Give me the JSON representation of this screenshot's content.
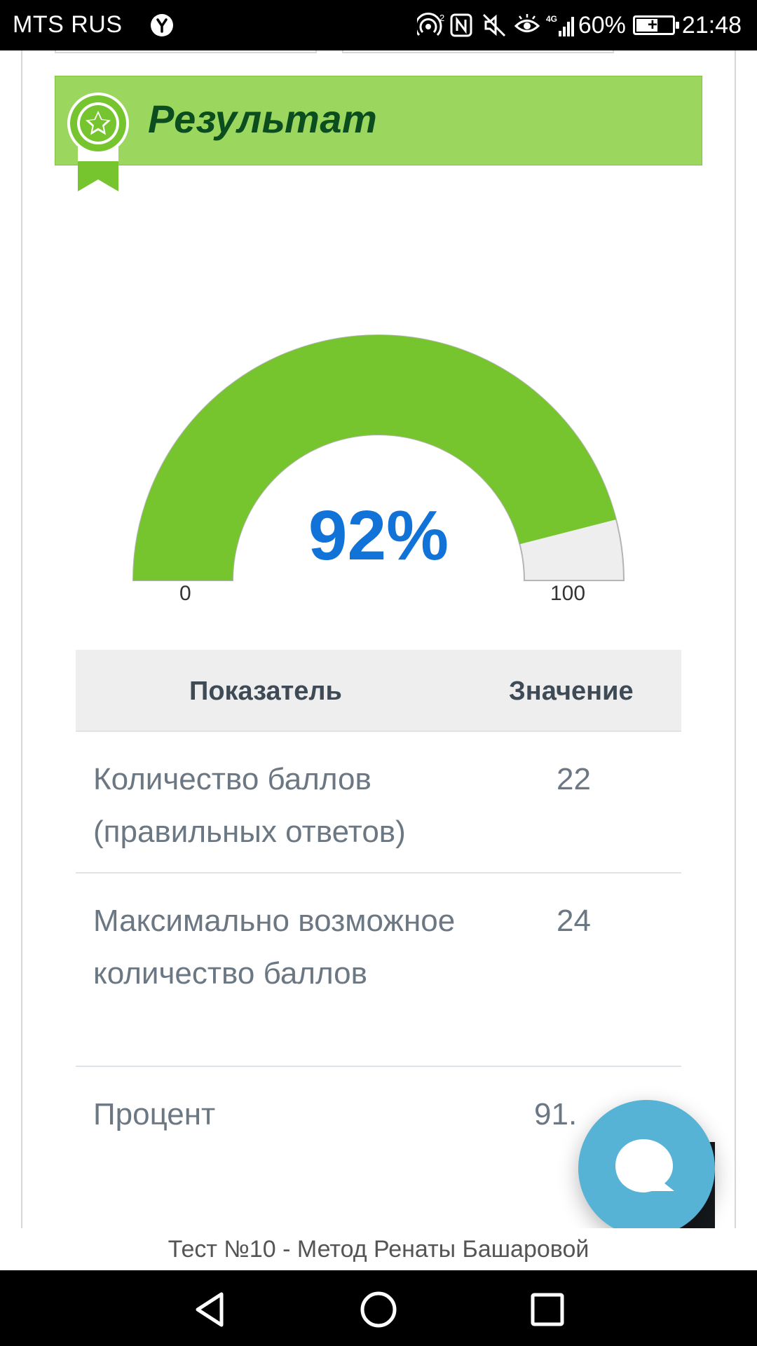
{
  "status_bar": {
    "carrier": "MTS RUS",
    "battery": "60%",
    "battery_level": 0.6,
    "time": "21:48",
    "icons": [
      "yandex-icon",
      "hotspot-icon",
      "nfc-icon",
      "mute-icon",
      "eye-comfort-icon",
      "signal-4g-icon",
      "battery-charging-icon"
    ]
  },
  "result_section": {
    "title": "Результат",
    "badge_icon": "award-ribbon-icon"
  },
  "gauge": {
    "value": 92,
    "value_label": "92%",
    "min_label": "0",
    "max_label": "100",
    "fill_color": "#76c42e",
    "track_color": "#eeeeee",
    "value_color": "#1172d8"
  },
  "table": {
    "headers": {
      "metric": "Показатель",
      "value": "Значение"
    },
    "rows": [
      {
        "metric": "Количество баллов (правильных ответов)",
        "value": "22"
      },
      {
        "metric": "Максимально возможное количество баллов",
        "value": "24"
      },
      {
        "metric": "Процент",
        "value": "91."
      }
    ]
  },
  "chat_widget": {
    "icon": "chat-bubble-icon",
    "color": "#56b3d6"
  },
  "footer": {
    "title": "Тест №10 - Метод Ренаты Башаровой"
  },
  "nav_bar": {
    "buttons": [
      "back-icon",
      "home-icon",
      "recents-icon"
    ]
  }
}
